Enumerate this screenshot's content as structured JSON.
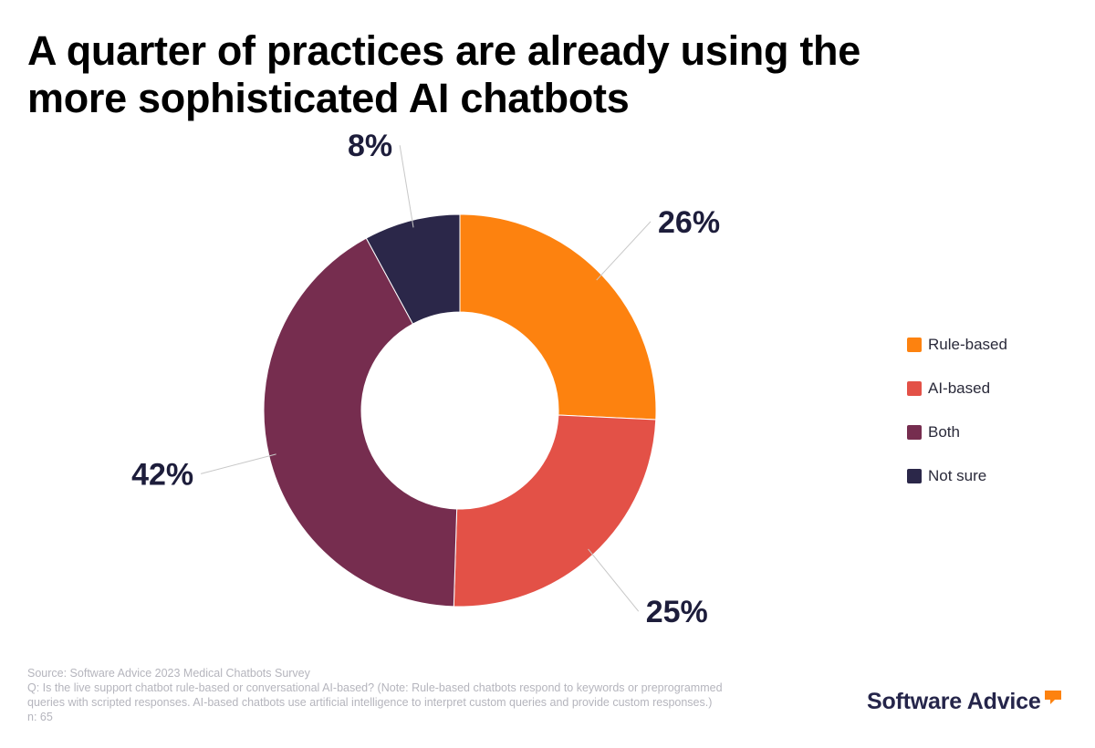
{
  "title_lines": [
    "A quarter of practices are already using the",
    "more sophisticated AI chatbots"
  ],
  "chart_data": {
    "type": "pie",
    "subtype": "donut",
    "title": "A quarter of practices are already using the more sophisticated AI chatbots",
    "categories": [
      "Rule-based",
      "AI-based",
      "Both",
      "Not sure"
    ],
    "values": [
      26,
      25,
      42,
      8
    ],
    "labels": [
      "26%",
      "25%",
      "42%",
      "8%"
    ],
    "colors": [
      "#fd820f",
      "#e35147",
      "#762d4f",
      "#2b2749"
    ],
    "legend_position": "right"
  },
  "footer": {
    "source": "Source: Software Advice 2023 Medical Chatbots Survey",
    "question_line1": "Q: Is the live support chatbot rule-based or conversational AI-based? (Note: Rule-based chatbots respond to keywords or preprogrammed",
    "question_line2": "queries with scripted responses. AI-based chatbots use artificial intelligence to interpret custom queries and provide custom responses.)",
    "n": "n: 65"
  },
  "brand": {
    "name": "Software Advice",
    "bubble_color": "#fd820f"
  }
}
